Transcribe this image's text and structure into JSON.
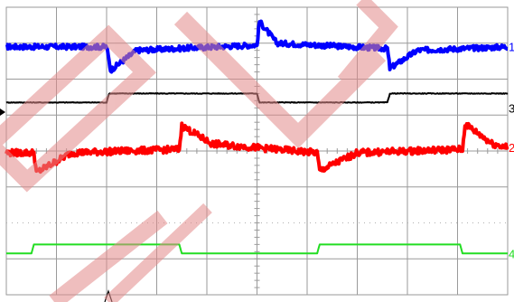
{
  "colors": {
    "background": "#ffffff",
    "grid": "#9a9a9a",
    "grid_dots": "#b0b0b0",
    "ch1": "#0000ff",
    "ch2": "#ff0000",
    "ch3": "#000000",
    "ch4": "#22dd22",
    "watermark": "#e28a8a"
  },
  "chart_data": {
    "type": "line",
    "title": "",
    "xlabel": "",
    "ylabel": "",
    "grid": true,
    "divisions": {
      "x": 10,
      "y": 8
    },
    "xlim": [
      0,
      10
    ],
    "ylim": [
      -4,
      4
    ],
    "channel_markers": [
      "1",
      "2",
      "3",
      "4"
    ],
    "series": [
      {
        "channel": "1",
        "color": "#0000ff",
        "noise": 0.07,
        "points": [
          [
            0,
            2.9
          ],
          [
            2.0,
            2.9
          ],
          [
            2.08,
            2.25
          ],
          [
            2.6,
            2.8
          ],
          [
            5.0,
            2.95
          ],
          [
            5.05,
            3.6
          ],
          [
            5.4,
            3.0
          ],
          [
            7.6,
            2.85
          ],
          [
            7.65,
            2.3
          ],
          [
            8.2,
            2.8
          ],
          [
            10,
            2.9
          ]
        ]
      },
      {
        "channel": "3",
        "color": "#000000",
        "noise": 0.01,
        "points": [
          [
            0,
            1.35
          ],
          [
            2.0,
            1.35
          ],
          [
            2.05,
            1.6
          ],
          [
            5.0,
            1.6
          ],
          [
            5.05,
            1.35
          ],
          [
            7.6,
            1.35
          ],
          [
            7.65,
            1.6
          ],
          [
            10,
            1.6
          ]
        ]
      },
      {
        "channel": "2",
        "color": "#ff0000",
        "noise": 0.09,
        "points": [
          [
            0,
            -0.05
          ],
          [
            0.55,
            -0.05
          ],
          [
            0.6,
            -0.6
          ],
          [
            1.3,
            -0.05
          ],
          [
            3.45,
            0.05
          ],
          [
            3.5,
            0.7
          ],
          [
            4.1,
            0.2
          ],
          [
            6.2,
            -0.05
          ],
          [
            6.25,
            -0.55
          ],
          [
            7.0,
            -0.05
          ],
          [
            9.1,
            0.05
          ],
          [
            9.15,
            0.75
          ],
          [
            9.7,
            0.2
          ],
          [
            10,
            0.1
          ]
        ]
      },
      {
        "channel": "4",
        "color": "#22dd22",
        "noise": 0.0,
        "points": [
          [
            0,
            -2.85
          ],
          [
            0.5,
            -2.85
          ],
          [
            0.55,
            -2.6
          ],
          [
            3.45,
            -2.6
          ],
          [
            3.5,
            -2.85
          ],
          [
            6.2,
            -2.85
          ],
          [
            6.25,
            -2.6
          ],
          [
            9.05,
            -2.6
          ],
          [
            9.1,
            -2.85
          ],
          [
            10,
            -2.85
          ]
        ]
      }
    ]
  }
}
